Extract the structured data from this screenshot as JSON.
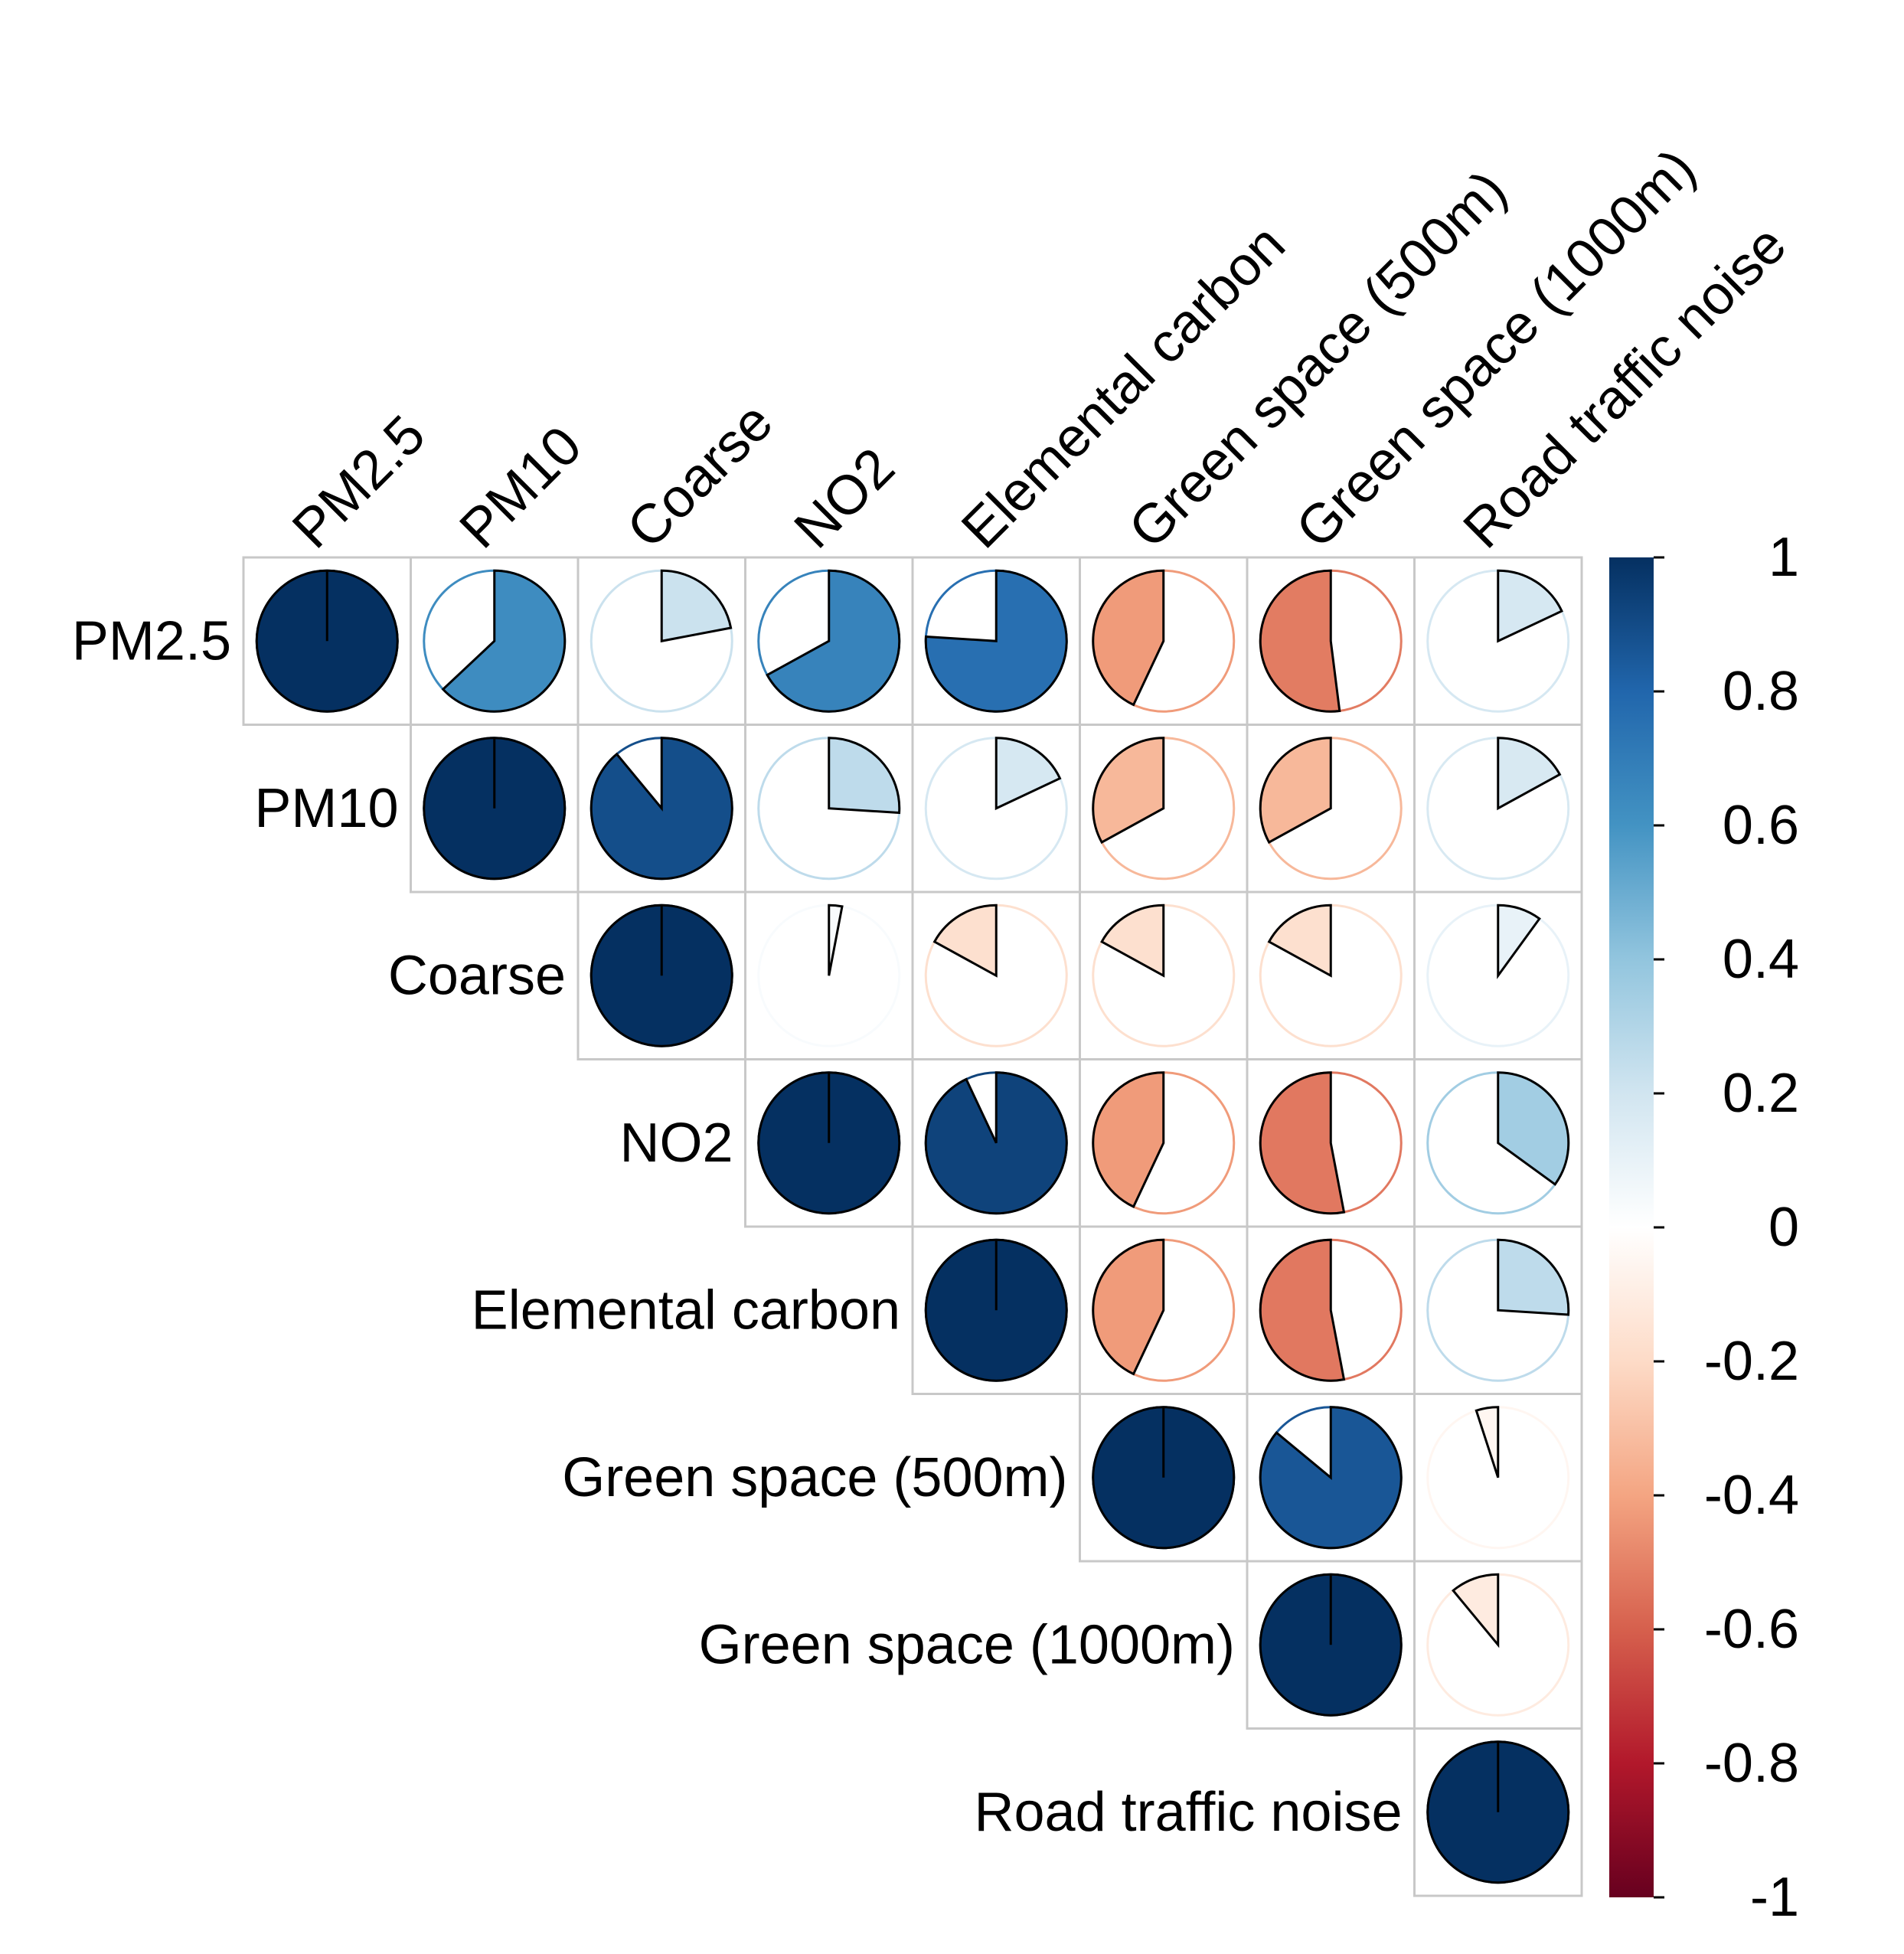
{
  "chart_data": {
    "type": "heatmap",
    "subtype": "correlation-pie-upper",
    "title": "",
    "variables": [
      "PM2.5",
      "PM10",
      "Coarse",
      "NO2",
      "Elemental carbon",
      "Green space (500m)",
      "Green space (1000m)",
      "Road traffic noise"
    ],
    "matrix": [
      [
        1.0,
        0.63,
        0.22,
        0.67,
        0.76,
        -0.43,
        -0.52,
        0.18
      ],
      [
        0.63,
        1.0,
        0.89,
        0.26,
        0.18,
        -0.33,
        -0.33,
        0.17
      ],
      [
        0.22,
        0.89,
        1.0,
        0.03,
        -0.17,
        -0.17,
        -0.17,
        0.1
      ],
      [
        0.67,
        0.26,
        0.03,
        1.0,
        0.93,
        -0.43,
        -0.53,
        0.35
      ],
      [
        0.76,
        0.18,
        -0.17,
        0.93,
        1.0,
        -0.43,
        -0.53,
        0.26
      ],
      [
        -0.43,
        -0.33,
        -0.17,
        -0.43,
        -0.43,
        1.0,
        0.86,
        -0.05
      ],
      [
        -0.52,
        -0.33,
        -0.17,
        -0.53,
        -0.53,
        0.86,
        1.0,
        -0.11
      ],
      [
        0.18,
        0.17,
        0.1,
        0.35,
        0.26,
        -0.05,
        -0.11,
        1.0
      ]
    ],
    "color_scale": {
      "range": [
        -1,
        1
      ],
      "ticks": [
        "1",
        "0.8",
        "0.6",
        "0.4",
        "0.2",
        "0",
        "-0.2",
        "-0.4",
        "-0.6",
        "-0.8",
        "-1"
      ],
      "colors": [
        "#67001F",
        "#B2182B",
        "#D6604D",
        "#F4A582",
        "#FDDBC7",
        "#FFFFFF",
        "#D1E5F0",
        "#92C5DE",
        "#4393C3",
        "#2166AC",
        "#053061"
      ]
    },
    "legend_position": "right"
  }
}
